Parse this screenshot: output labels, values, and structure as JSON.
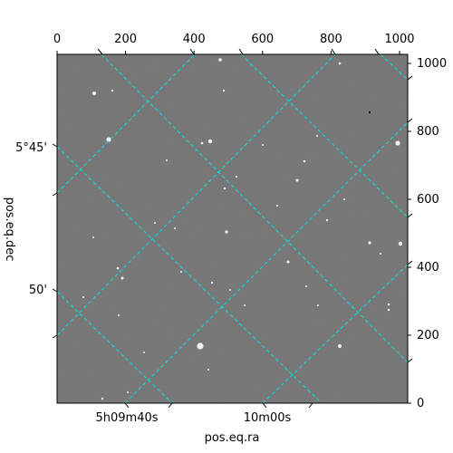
{
  "chart_data": {
    "type": "image",
    "xlabel": "pos.eq.ra",
    "ylabel": "pos.eq.dec",
    "pixel_x_ticks": [
      "0",
      "200",
      "400",
      "600",
      "800",
      "1000"
    ],
    "pixel_y_ticks": [
      "0",
      "200",
      "400",
      "600",
      "800",
      "1000"
    ],
    "pixel_xlim": [
      0,
      1024
    ],
    "pixel_ylim": [
      0,
      1024
    ],
    "ra_ticks": [
      "5h09m40s",
      "10m00s"
    ],
    "dec_ticks": [
      "5°45'",
      "50'"
    ],
    "grid": "on",
    "grid_color": "#00e5e5",
    "image_color": "#7b7b7b"
  }
}
